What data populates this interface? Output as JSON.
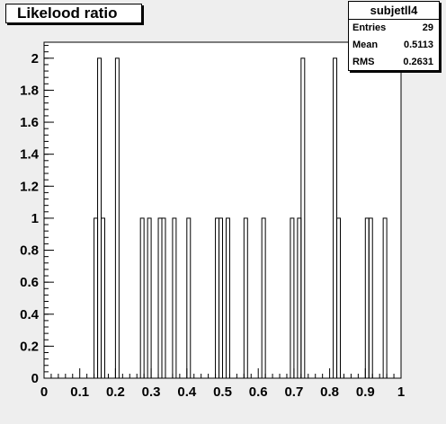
{
  "chart_data": {
    "type": "bar",
    "title": "Likelood ratio",
    "xlabel": "",
    "ylabel": "",
    "xlim": [
      0,
      1
    ],
    "ylim": [
      0,
      2.1
    ],
    "x_ticks": [
      "0",
      "0.1",
      "0.2",
      "0.3",
      "0.4",
      "0.5",
      "0.6",
      "0.7",
      "0.8",
      "0.9",
      "1"
    ],
    "y_ticks": [
      "0",
      "0.2",
      "0.4",
      "0.6",
      "0.8",
      "1",
      "1.2",
      "1.4",
      "1.6",
      "1.8",
      "2"
    ],
    "bin_width": 0.01,
    "bins": [
      {
        "x": 0.14,
        "value": 1
      },
      {
        "x": 0.15,
        "value": 2
      },
      {
        "x": 0.16,
        "value": 1
      },
      {
        "x": 0.2,
        "value": 2
      },
      {
        "x": 0.27,
        "value": 1
      },
      {
        "x": 0.29,
        "value": 1
      },
      {
        "x": 0.32,
        "value": 1
      },
      {
        "x": 0.33,
        "value": 1
      },
      {
        "x": 0.36,
        "value": 1
      },
      {
        "x": 0.4,
        "value": 1
      },
      {
        "x": 0.48,
        "value": 1
      },
      {
        "x": 0.49,
        "value": 1
      },
      {
        "x": 0.51,
        "value": 1
      },
      {
        "x": 0.56,
        "value": 1
      },
      {
        "x": 0.61,
        "value": 1
      },
      {
        "x": 0.69,
        "value": 1
      },
      {
        "x": 0.71,
        "value": 1
      },
      {
        "x": 0.72,
        "value": 2
      },
      {
        "x": 0.81,
        "value": 2
      },
      {
        "x": 0.82,
        "value": 1
      },
      {
        "x": 0.9,
        "value": 1
      },
      {
        "x": 0.91,
        "value": 1
      },
      {
        "x": 0.95,
        "value": 1
      }
    ],
    "grid": false,
    "colors": {
      "frame_bg": "#eeeeee",
      "plot_bg": "#ffffff",
      "line": "#000000"
    }
  },
  "stats": {
    "name": "subjetll4",
    "entries_label": "Entries",
    "entries_value": "29",
    "mean_label": "Mean",
    "mean_value": "0.5113",
    "rms_label": "RMS",
    "rms_value": "0.2631"
  }
}
